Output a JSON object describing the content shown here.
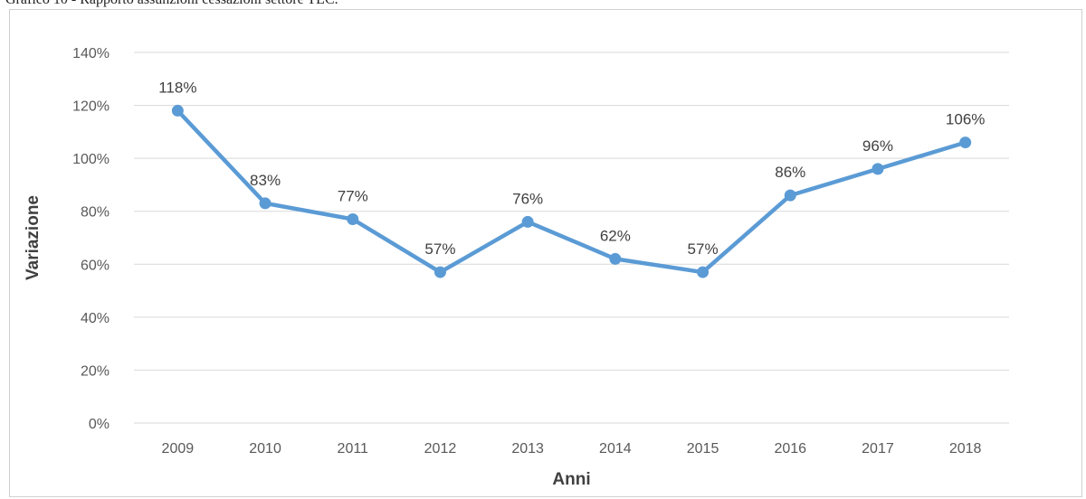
{
  "caption": "Grafico 10 - Rapporto assunzioni cessazioni settore TLC.",
  "colors": {
    "line": "#5b9bd5",
    "grid": "#d9d9d9",
    "tick_text": "#595959",
    "label_text": "#404040"
  },
  "chart_data": {
    "type": "line",
    "categories": [
      "2009",
      "2010",
      "2011",
      "2012",
      "2013",
      "2014",
      "2015",
      "2016",
      "2017",
      "2018"
    ],
    "series": [
      {
        "values": [
          118,
          83,
          77,
          57,
          76,
          62,
          57,
          86,
          96,
          106
        ],
        "data_labels": [
          "118%",
          "83%",
          "77%",
          "57%",
          "76%",
          "62%",
          "57%",
          "86%",
          "96%",
          "106%"
        ]
      }
    ],
    "xlabel": "Anni",
    "ylabel": "Variazione",
    "ylim": [
      0,
      140
    ],
    "y_ticks": [
      0,
      20,
      40,
      60,
      80,
      100,
      120,
      140
    ],
    "y_tick_labels": [
      "0%",
      "20%",
      "40%",
      "60%",
      "80%",
      "100%",
      "120%",
      "140%"
    ],
    "grid": true,
    "legend": "none",
    "markers": true
  }
}
